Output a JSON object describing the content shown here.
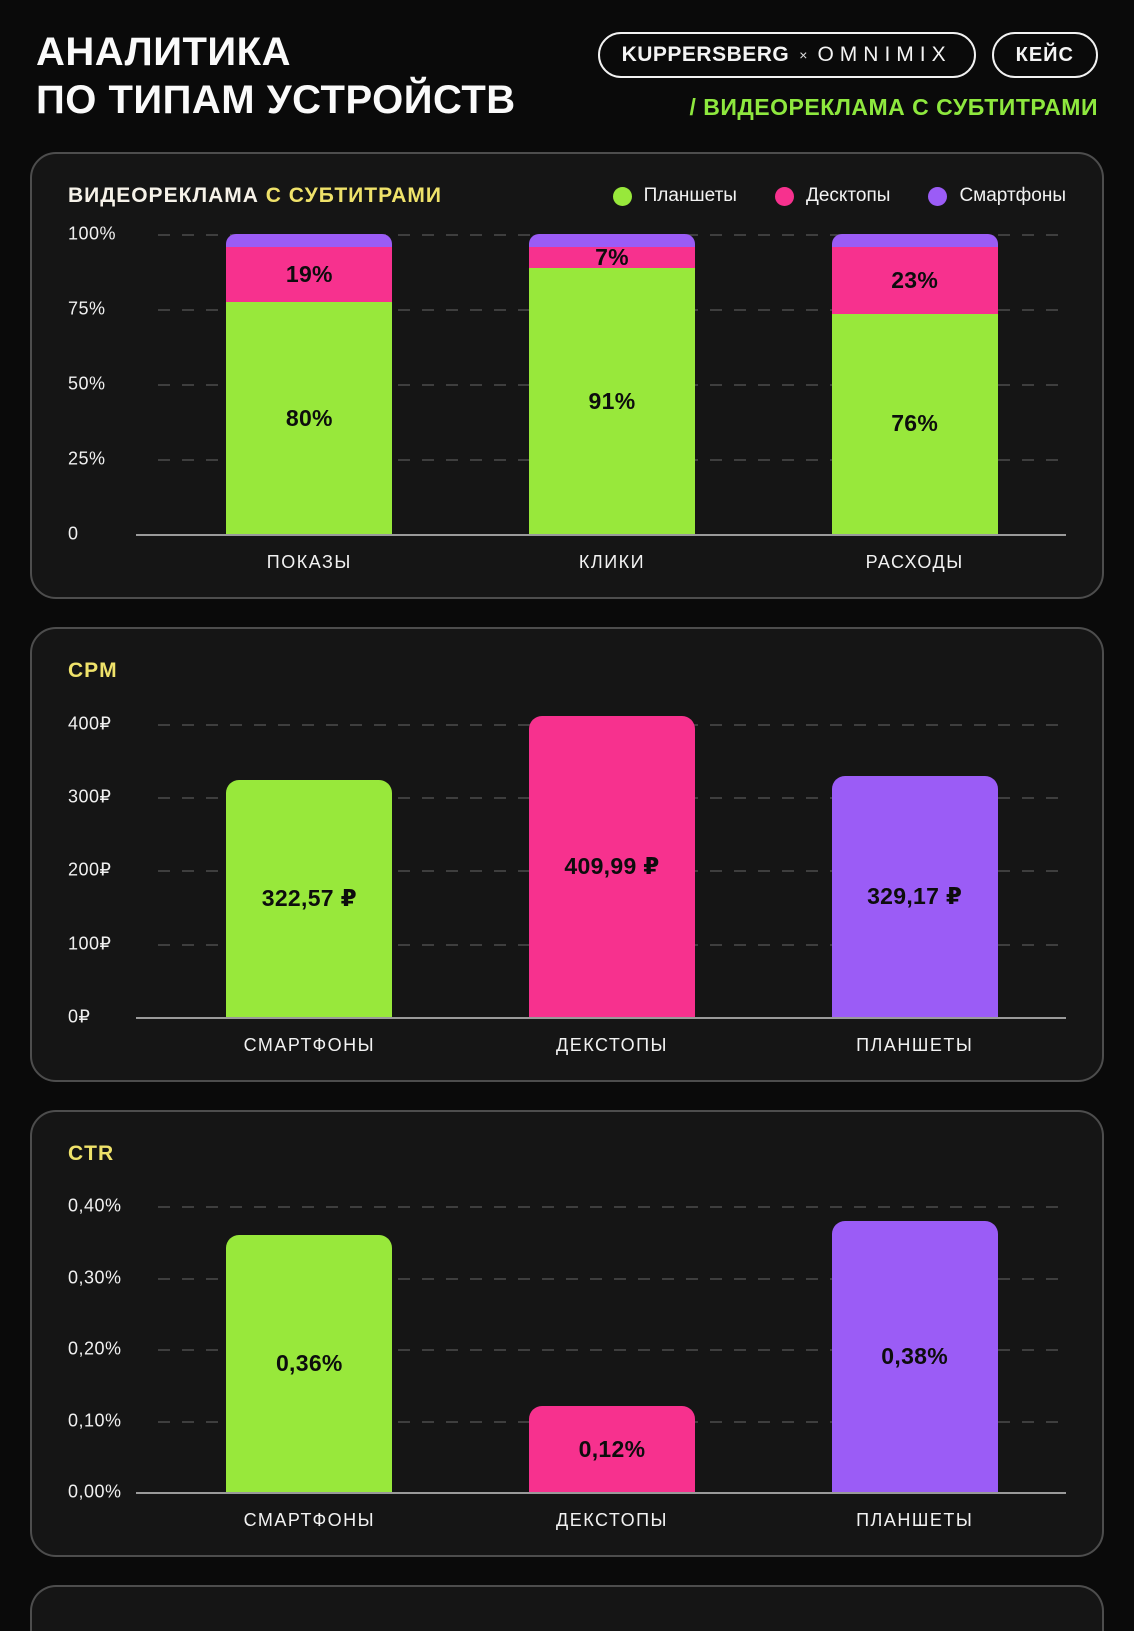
{
  "header": {
    "title_line1": "АНАЛИТИКА",
    "title_line2": "ПО ТИПАМ УСТРОЙСТВ",
    "brand_badge": {
      "name": "KUPPERSBERG",
      "multiply": "×",
      "partner": "OMNIMIX"
    },
    "case_badge": "КЕЙС",
    "subtitle": "/ ВИДЕОРЕКЛАМА С СУБТИТРАМИ"
  },
  "colors": {
    "background": "#0a0a0a",
    "panel": "#151515",
    "panel_border": "#4d4d4d",
    "green": "#98e83b",
    "pink": "#f7318e",
    "purple": "#9b5cf6",
    "yellow": "#efe26a",
    "accent_green_text": "#8ee83e"
  },
  "legend": [
    {
      "label": "Планшеты",
      "color": "#98e83b"
    },
    {
      "label": "Десктопы",
      "color": "#f7318e"
    },
    {
      "label": "Смартфоны",
      "color": "#9b5cf6"
    }
  ],
  "panels": {
    "devices": {
      "title_main": "ВИДЕОРЕКЛАМА",
      "title_accent": "С СУБТИТРАМИ"
    },
    "cpm": {
      "title": "CPM"
    },
    "ctr": {
      "title": "CTR"
    }
  },
  "chart_data": [
    {
      "type": "bar",
      "stacked": true,
      "title": "ВИДЕОРЕКЛАМА С СУБТИТРАМИ",
      "categories": [
        "ПОКАЗЫ",
        "КЛИКИ",
        "РАСХОДЫ"
      ],
      "series": [
        {
          "name": "Планшеты",
          "color": "#98e83b",
          "values": [
            80,
            91,
            76
          ]
        },
        {
          "name": "Десктопы",
          "color": "#f7318e",
          "values": [
            19,
            7,
            23
          ]
        },
        {
          "name": "Смартфоны",
          "color": "#9b5cf6",
          "values": [
            1,
            2,
            1
          ]
        }
      ],
      "segment_labels": [
        [
          "80%",
          "19%",
          ""
        ],
        [
          "91%",
          "7%",
          ""
        ],
        [
          "76%",
          "23%",
          ""
        ]
      ],
      "ticks": [
        {
          "label": "100%",
          "value": 100
        },
        {
          "label": "75%",
          "value": 75
        },
        {
          "label": "50%",
          "value": 50
        },
        {
          "label": "25%",
          "value": 25
        },
        {
          "label": "0",
          "value": 0
        }
      ],
      "ylim": [
        0,
        100
      ],
      "unit": "%",
      "grid": "dashed-horizontal",
      "legend_position": "top-right"
    },
    {
      "type": "bar",
      "title": "CPM",
      "categories": [
        "СМАРТФОНЫ",
        "ДЕКСТОПЫ",
        "ПЛАНШЕТЫ"
      ],
      "values": [
        322.57,
        409.99,
        329.17
      ],
      "value_labels": [
        "322,57 ₽",
        "409,99 ₽",
        "329,17 ₽"
      ],
      "bar_colors": [
        "#98e83b",
        "#f7318e",
        "#9b5cf6"
      ],
      "ticks": [
        {
          "label": "400₽",
          "value": 400
        },
        {
          "label": "300₽",
          "value": 300
        },
        {
          "label": "200₽",
          "value": 200
        },
        {
          "label": "100₽",
          "value": 100
        },
        {
          "label": "0₽",
          "value": 0
        }
      ],
      "ylim": [
        0,
        420
      ],
      "unit": "₽",
      "grid": "dashed-horizontal"
    },
    {
      "type": "bar",
      "title": "CTR",
      "categories": [
        "СМАРТФОНЫ",
        "ДЕКСТОПЫ",
        "ПЛАНШЕТЫ"
      ],
      "values": [
        0.36,
        0.12,
        0.38
      ],
      "value_labels": [
        "0,36%",
        "0,12%",
        "0,38%"
      ],
      "bar_colors": [
        "#98e83b",
        "#f7318e",
        "#9b5cf6"
      ],
      "ticks": [
        {
          "label": "0,40%",
          "value": 0.4
        },
        {
          "label": "0,30%",
          "value": 0.3
        },
        {
          "label": "0,20%",
          "value": 0.2
        },
        {
          "label": "0,10%",
          "value": 0.1
        },
        {
          "label": "0,00%",
          "value": 0
        }
      ],
      "ylim": [
        0,
        0.42
      ],
      "unit": "%",
      "grid": "dashed-horizontal"
    }
  ]
}
